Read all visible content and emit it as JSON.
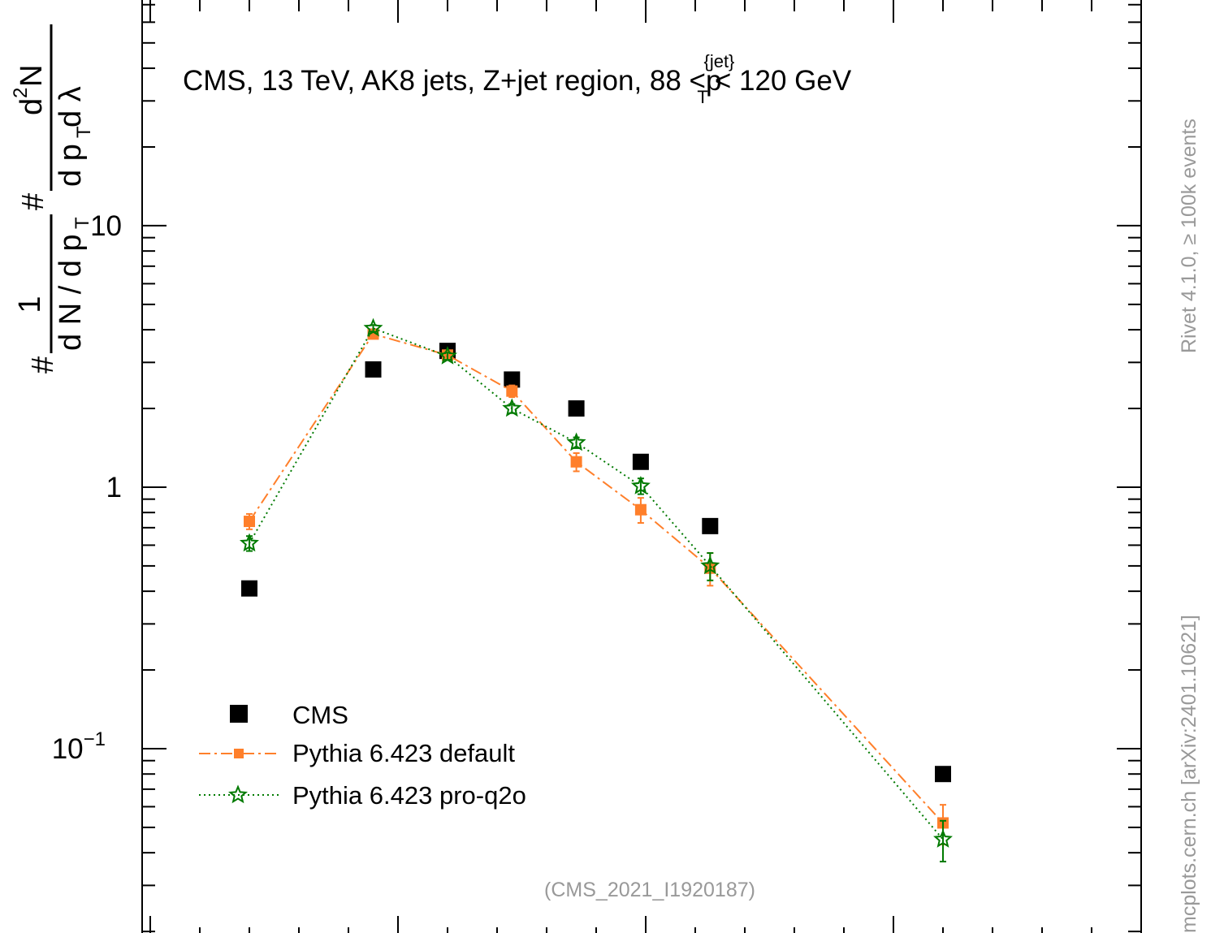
{
  "chart_data": {
    "type": "scatter",
    "title": "CMS, 13 TeV, AK8 jets, Z+jet region, 88 <p_T^{jet}< 120 GeV",
    "title_parts": {
      "main": "CMS, 13 TeV, AK8 jets, Z+jet region, 88 <p",
      "sup": "{jet}",
      "sub": "T",
      "tail": "< 120 GeV"
    },
    "ylabel": "#frac{1}{d N / d p_T} #frac{d^2N}{d p_T d λ}",
    "ylabel_parts": {
      "hash": "#",
      "num1": "1",
      "den1": "d N / d p",
      "den1_sub": "T",
      "hash2": "#",
      "num2": "d",
      "num2_sup": "2",
      "num2_tail": "N",
      "den2": "d p",
      "den2_sub": "T",
      "den2_tail": " d λ"
    },
    "yscale": "log",
    "ylim": [
      0.0185,
      74
    ],
    "xlim": [
      -0.0082,
      1.0
    ],
    "yticks": [
      {
        "value": 10,
        "label": "10"
      },
      {
        "value": 1,
        "label": "1"
      },
      {
        "value": 0.1,
        "label": "10",
        "sup": "−1"
      }
    ],
    "legend_position": "bottom-left",
    "series": [
      {
        "name": "CMS",
        "marker": "square",
        "color": "#000000",
        "x": [
          0.1,
          0.225,
          0.3,
          0.365,
          0.43,
          0.495,
          0.565,
          0.8
        ],
        "y": [
          0.41,
          2.82,
          3.32,
          2.58,
          2.0,
          1.25,
          0.71,
          0.08
        ],
        "err": [
          0,
          0,
          0,
          0,
          0,
          0,
          0,
          0
        ]
      },
      {
        "name": "Pythia 6.423 default",
        "marker": "square-small",
        "line": "dashdot",
        "color": "#ff7f2a",
        "x": [
          0.1,
          0.225,
          0.3,
          0.365,
          0.43,
          0.495,
          0.565,
          0.8
        ],
        "y": [
          0.74,
          3.85,
          3.2,
          2.33,
          1.25,
          0.82,
          0.49,
          0.052
        ],
        "err": [
          0.05,
          0.15,
          0.12,
          0.12,
          0.1,
          0.09,
          0.07,
          0.009
        ]
      },
      {
        "name": "Pythia 6.423 pro-q2o",
        "marker": "star",
        "line": "dotted",
        "color": "#007a00",
        "x": [
          0.1,
          0.225,
          0.3,
          0.365,
          0.43,
          0.495,
          0.565,
          0.8
        ],
        "y": [
          0.61,
          4.05,
          3.17,
          2.0,
          1.48,
          1.01,
          0.5,
          0.045
        ],
        "err": [
          0.04,
          0.12,
          0.1,
          0.08,
          0.07,
          0.07,
          0.06,
          0.008
        ]
      }
    ],
    "footer_label": "(CMS_2021_I1920187)",
    "side_label_top": "Rivet 4.1.0, ≥ 100k events",
    "side_label_bottom": "mcplots.cern.ch [arXiv:2401.10621]"
  }
}
